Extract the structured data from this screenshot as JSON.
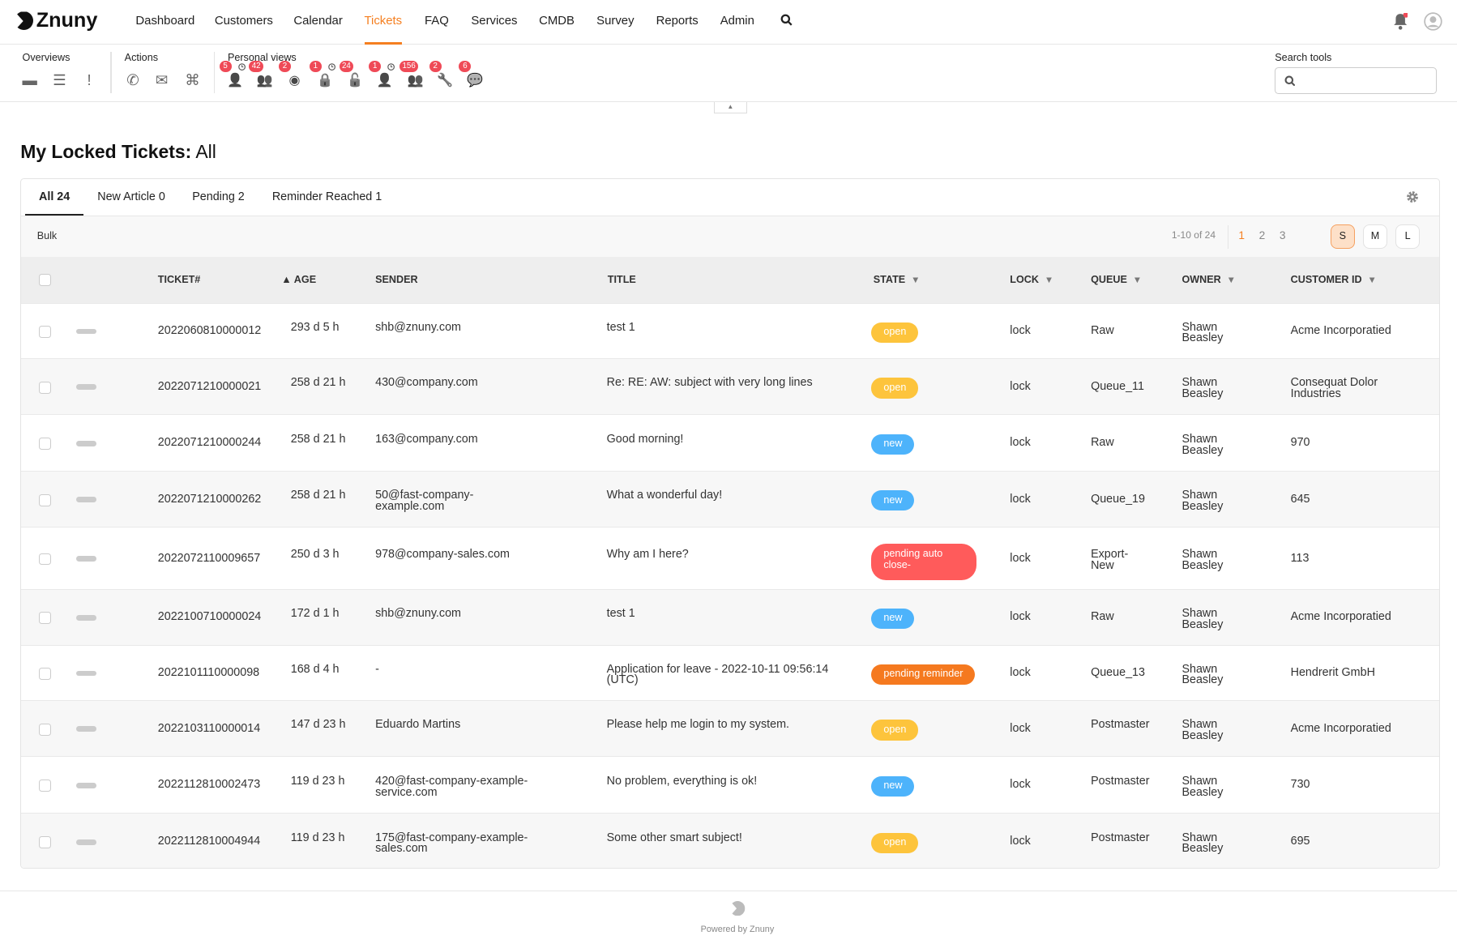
{
  "app": {
    "logo_text": "Znuny"
  },
  "nav": [
    {
      "label": "Dashboard"
    },
    {
      "label": "Customers"
    },
    {
      "label": "Calendar"
    },
    {
      "label": "Tickets",
      "active": true
    },
    {
      "label": "FAQ"
    },
    {
      "label": "Services"
    },
    {
      "label": "CMDB"
    },
    {
      "label": "Survey"
    },
    {
      "label": "Reports"
    },
    {
      "label": "Admin"
    }
  ],
  "toolbar": {
    "overviews_label": "Overviews",
    "actions_label": "Actions",
    "personal_label": "Personal views",
    "search_label": "Search tools",
    "search_placeholder": "",
    "overviews": [
      {
        "icon": "folder-icon"
      },
      {
        "icon": "ordered-list-icon"
      },
      {
        "icon": "exclamation-icon"
      }
    ],
    "actions": [
      {
        "icon": "phone-icon"
      },
      {
        "icon": "envelope-icon"
      },
      {
        "icon": "sitemap-icon"
      }
    ],
    "personal": [
      {
        "icon": "responsible-new-icon",
        "count": "5",
        "reminder": true
      },
      {
        "icon": "responsible-all-icon",
        "count": "42"
      },
      {
        "icon": "watched-eye-icon",
        "count": "2"
      },
      {
        "icon": "locked-lock-icon",
        "count": "1",
        "reminder": true
      },
      {
        "icon": "locked-all-icon",
        "count": "24"
      },
      {
        "icon": "owner-user-icon",
        "count": "1",
        "reminder": true
      },
      {
        "icon": "owner-all-icon",
        "count": "156"
      },
      {
        "icon": "wrench-icon",
        "count": "2"
      },
      {
        "icon": "chat-bubble-icon",
        "count": "6"
      }
    ]
  },
  "page": {
    "title_bold": "My Locked Tickets:",
    "title_rest": " All"
  },
  "tabs": [
    {
      "label": "All 24",
      "active": true
    },
    {
      "label": "New Article 0"
    },
    {
      "label": "Pending 2"
    },
    {
      "label": "Reminder Reached 1"
    }
  ],
  "bulk_label": "Bulk",
  "pagination": {
    "range": "1-10 of 24",
    "pages": [
      "1",
      "2",
      "3"
    ],
    "current": "1"
  },
  "sizes": [
    {
      "label": "S",
      "active": true
    },
    {
      "label": "M"
    },
    {
      "label": "L"
    }
  ],
  "columns": {
    "ticket": "TICKET#",
    "age": "▲ AGE",
    "sender": "SENDER",
    "title": "TITLE",
    "state": "STATE",
    "lock": "LOCK",
    "queue": "QUEUE",
    "owner": "OWNER",
    "customer": "CUSTOMER ID"
  },
  "state_colors": {
    "open": "#fdc43c",
    "new": "#4db3fb",
    "pending auto close-": "#ff5b5b",
    "pending reminder": "#f5791f"
  },
  "rows": [
    {
      "ticket": "2022060810000012",
      "age": "293 d 5 h",
      "sender": "shb@znuny.com",
      "title": "test 1",
      "state": "open",
      "lock": "lock",
      "queue": "Raw",
      "owner": "Shawn Beasley",
      "customer": "Acme Incorporatied"
    },
    {
      "ticket": "2022071210000021",
      "age": "258 d 21 h",
      "sender": "430@company.com",
      "title": "Re: RE: AW: subject with very long lines",
      "state": "open",
      "lock": "lock",
      "queue": "Queue_11",
      "owner": "Shawn Beasley",
      "customer": "Consequat Dolor Industries"
    },
    {
      "ticket": "2022071210000244",
      "age": "258 d 21 h",
      "sender": "163@company.com",
      "title": "Good morning!",
      "state": "new",
      "lock": "lock",
      "queue": "Raw",
      "owner": "Shawn Beasley",
      "customer": "970"
    },
    {
      "ticket": "2022071210000262",
      "age": "258 d 21 h",
      "sender": "50@fast-company-example.com",
      "title": "What a wonderful day!",
      "state": "new",
      "lock": "lock",
      "queue": "Queue_19",
      "owner": "Shawn Beasley",
      "customer": "645"
    },
    {
      "ticket": "2022072110009657",
      "age": "250 d 3 h",
      "sender": "978@company-sales.com",
      "title": "Why am I here?",
      "state": "pending auto close-",
      "lock": "lock",
      "queue": "Export-New",
      "owner": "Shawn Beasley",
      "customer": "113"
    },
    {
      "ticket": "2022100710000024",
      "age": "172 d 1 h",
      "sender": "shb@znuny.com",
      "title": "test 1",
      "state": "new",
      "lock": "lock",
      "queue": "Raw",
      "owner": "Shawn Beasley",
      "customer": "Acme Incorporatied"
    },
    {
      "ticket": "2022101110000098",
      "age": "168 d 4 h",
      "sender": "-",
      "title": "Application for leave - 2022-10-11 09:56:14 (UTC)",
      "state": "pending reminder",
      "lock": "lock",
      "queue": "Queue_13",
      "owner": "Shawn Beasley",
      "customer": "Hendrerit GmbH"
    },
    {
      "ticket": "2022103110000014",
      "age": "147 d 23 h",
      "sender": "Eduardo Martins",
      "title": "Please help me login to my system.",
      "state": "open",
      "lock": "lock",
      "queue": "Postmaster",
      "owner": "Shawn Beasley",
      "customer": "Acme Incorporatied"
    },
    {
      "ticket": "2022112810002473",
      "age": "119 d 23 h",
      "sender": "420@fast-company-example-service.com",
      "title": "No problem, everything is ok!",
      "state": "new",
      "lock": "lock",
      "queue": "Postmaster",
      "owner": "Shawn Beasley",
      "customer": "730"
    },
    {
      "ticket": "2022112810004944",
      "age": "119 d 23 h",
      "sender": "175@fast-company-example-sales.com",
      "title": "Some other smart subject!",
      "state": "open",
      "lock": "lock",
      "queue": "Postmaster",
      "owner": "Shawn Beasley",
      "customer": "695"
    }
  ],
  "footer": {
    "powered": "Powered by Znuny"
  }
}
